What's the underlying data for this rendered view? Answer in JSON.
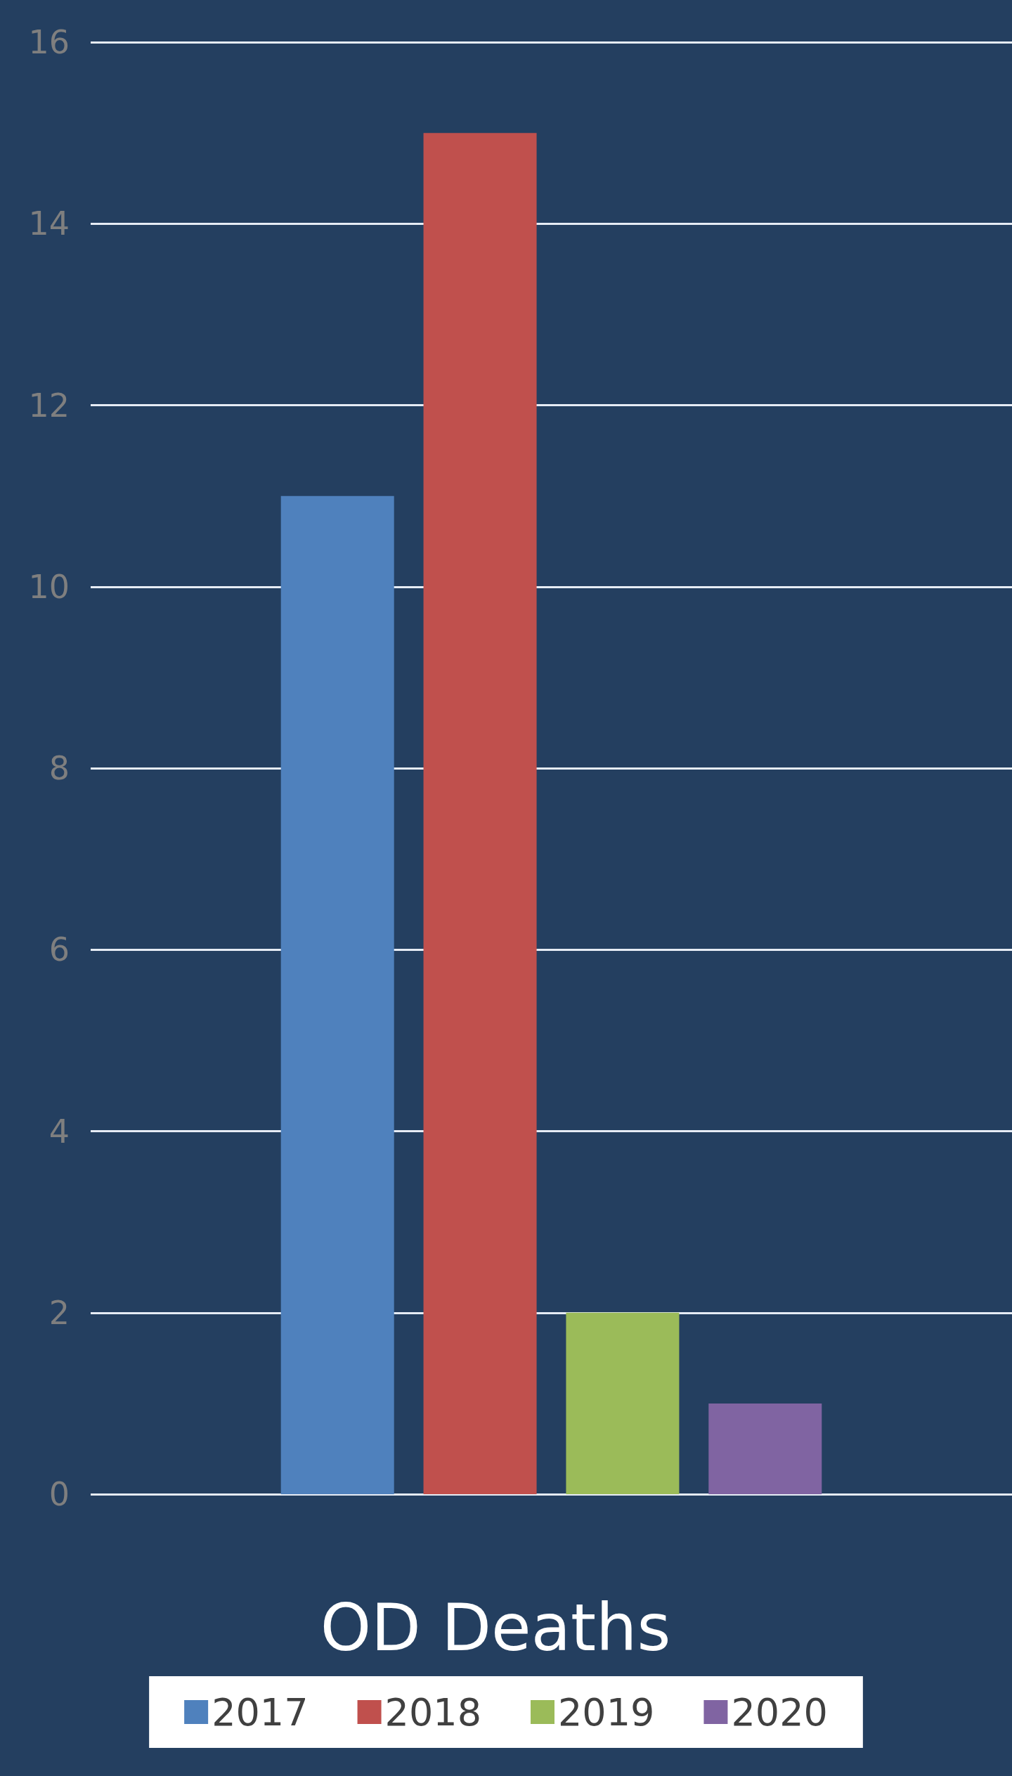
{
  "chart_data": {
    "type": "bar",
    "title": "OD Deaths",
    "categories": [
      null
    ],
    "series": [
      {
        "name": "2017",
        "color": "#4f81bd",
        "values": [
          11
        ]
      },
      {
        "name": "2018",
        "color": "#c0504d",
        "values": [
          15
        ]
      },
      {
        "name": "2019",
        "color": "#9bbb59",
        "values": [
          2
        ]
      },
      {
        "name": "2020",
        "color": "#8064a2",
        "values": [
          1
        ]
      }
    ],
    "ylim": [
      0,
      16
    ],
    "yticks": [
      0,
      2,
      4,
      6,
      8,
      10,
      12,
      14,
      16
    ],
    "grid": "y",
    "legend": "bottom"
  }
}
